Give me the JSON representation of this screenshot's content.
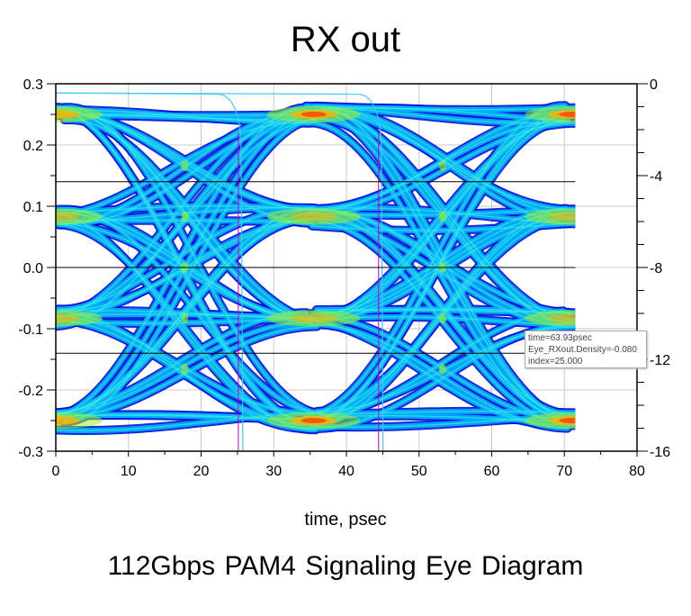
{
  "chart_data": {
    "type": "eye_diagram",
    "title": "RX out",
    "xlabel": "time, psec",
    "caption": "112Gbps PAM4    Signaling Eye Diagram",
    "xlim": [
      0,
      80
    ],
    "ylim": [
      -0.3,
      0.3
    ],
    "y2lim": [
      -16,
      0
    ],
    "xticks": [
      "0",
      "10",
      "20",
      "30",
      "40",
      "50",
      "60",
      "70",
      "80"
    ],
    "yticks": [
      "0.3",
      "0.2",
      "0.1",
      "0.0",
      "-0.1",
      "-0.2",
      "-0.3"
    ],
    "y2ticks": [
      "0",
      "-4",
      "-8",
      "-12",
      "-16"
    ],
    "data_extent_psec": [
      0,
      71.5
    ],
    "pam4_levels": [
      -0.25,
      -0.083,
      0.083,
      0.25
    ],
    "eye_centers_psec": [
      0,
      35.5,
      71
    ],
    "crossings_psec": [
      17.75,
      53.25
    ],
    "threshold_lines": [
      0.14,
      0.0,
      -0.14
    ],
    "grid": true,
    "colors": {
      "outer": "#0010d8",
      "body": "#00b4ff",
      "mid": "#40e8e0",
      "hot1": "#a0f020",
      "hot2": "#ffb000",
      "hot3": "#ff3000",
      "marker_cyan": "#40c8ff",
      "marker_magenta": "#c000c0"
    },
    "marker_curves_psec": [
      25.5,
      44.8
    ],
    "tooltip": {
      "line1": "time=63.93psec",
      "line2": "Eye_RXout.Density=-0.080",
      "line3": "index=25.000"
    }
  }
}
